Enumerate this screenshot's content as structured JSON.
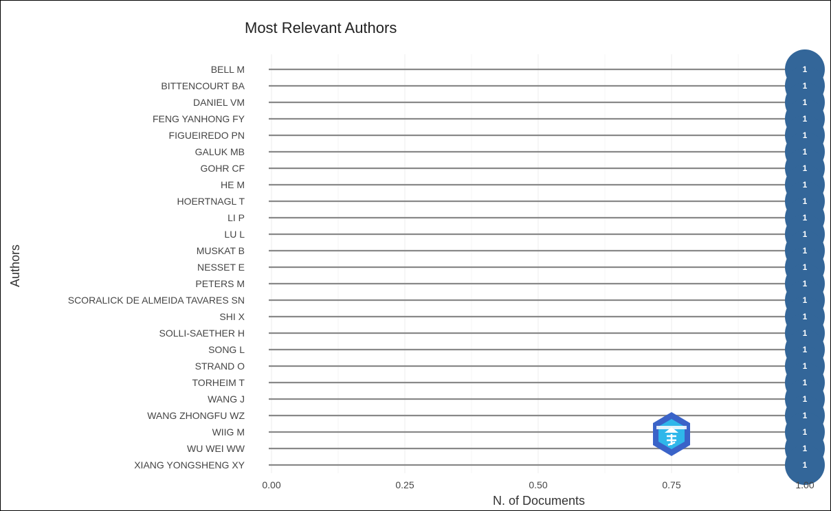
{
  "chart_data": {
    "type": "lollipop",
    "title": "Most Relevant Authors",
    "xlabel": "N. of Documents",
    "ylabel": "Authors",
    "xlim": [
      0,
      1
    ],
    "xticks": [
      "0.00",
      "0.25",
      "0.50",
      "0.75",
      "1.00"
    ],
    "grid": true,
    "categories": [
      "BELL M",
      "BITTENCOURT BA",
      "DANIEL VM",
      "FENG YANHONG FY",
      "FIGUEIREDO PN",
      "GALUK MB",
      "GOHR CF",
      "HE M",
      "HOERTNAGL T",
      "LI P",
      "LU L",
      "MUSKAT B",
      "NESSET E",
      "PETERS M",
      "SCORALICK DE ALMEIDA TAVARES SN",
      "SHI X",
      "SOLLI-SAETHER H",
      "SONG L",
      "STRAND O",
      "TORHEIM T",
      "WANG J",
      "WANG ZHONGFU WZ",
      "WIIG M",
      "WU WEI WW",
      "XIANG YONGSHENG XY"
    ],
    "values": [
      1,
      1,
      1,
      1,
      1,
      1,
      1,
      1,
      1,
      1,
      1,
      1,
      1,
      1,
      1,
      1,
      1,
      1,
      1,
      1,
      1,
      1,
      1,
      1,
      1
    ],
    "colors": {
      "marker": "#336699",
      "stem": "#888888",
      "grid": "#ececec",
      "watermark_dark": "#3a63c8",
      "watermark_light": "#2fb7ea"
    }
  }
}
